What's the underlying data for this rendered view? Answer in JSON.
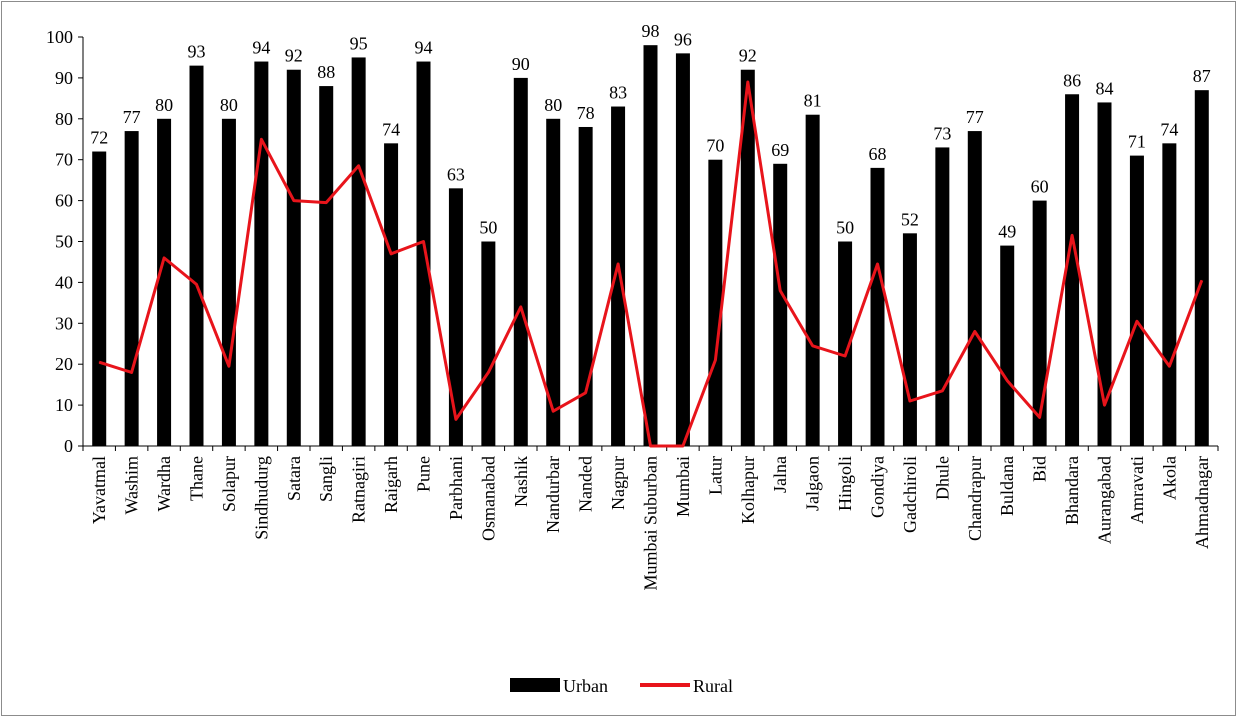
{
  "chart_data": {
    "type": "bar",
    "categories": [
      "Yavatmal",
      "Washim",
      "Wardha",
      "Thane",
      "Solapur",
      "Sindhudurg",
      "Satara",
      "Sangli",
      "Ratnagiri",
      "Raigarh",
      "Pune",
      "Parbhani",
      "Osmanabad",
      "Nashik",
      "Nandurbar",
      "Nanded",
      "Nagpur",
      "Mumbai Suburban",
      "Mumbai",
      "Latur",
      "Kolhapur",
      "Jalna",
      "Jalgaon",
      "Hingoli",
      "Gondiya",
      "Gadchiroli",
      "Dhule",
      "Chandrapur",
      "Buldana",
      "Bid",
      "Bhandara",
      "Aurangabad",
      "Amravati",
      "Akola",
      "Ahmadnagar"
    ],
    "series": [
      {
        "name": "Urban",
        "type": "bar",
        "color": "#000000",
        "values": [
          72,
          77,
          80,
          93,
          80,
          94,
          92,
          88,
          95,
          74,
          94,
          63,
          50,
          90,
          80,
          78,
          83,
          98,
          96,
          70,
          92,
          69,
          81,
          50,
          68,
          52,
          73,
          77,
          49,
          60,
          86,
          84,
          71,
          74,
          87
        ],
        "labels": [
          "72",
          "77",
          "80",
          "93",
          "80",
          "94",
          "92",
          "88",
          "95",
          "74",
          "94",
          "63",
          "50",
          "90",
          "80",
          "78",
          "83",
          "98",
          "96",
          "70",
          "92",
          "69",
          "81",
          "50",
          "68",
          "52",
          "73",
          "77",
          "49",
          "60",
          "86",
          "84",
          "71",
          "74",
          "87"
        ]
      },
      {
        "name": "Rural",
        "type": "line",
        "color": "#e8141b",
        "values": [
          20.5,
          18,
          46,
          39.5,
          19.5,
          75,
          60,
          59.5,
          68.5,
          47,
          50,
          6.5,
          18,
          34,
          8.5,
          13,
          44.5,
          0,
          0,
          21,
          89,
          38,
          24.5,
          22,
          44.5,
          11,
          13.5,
          28,
          16,
          7,
          51.5,
          10,
          30.5,
          19.5,
          40.5
        ]
      }
    ],
    "yticks": [
      "0",
      "10",
      "20",
      "30",
      "40",
      "50",
      "60",
      "70",
      "80",
      "90",
      "100"
    ],
    "ylim": [
      0,
      100
    ],
    "legend_position": "bottom",
    "grid": false
  }
}
